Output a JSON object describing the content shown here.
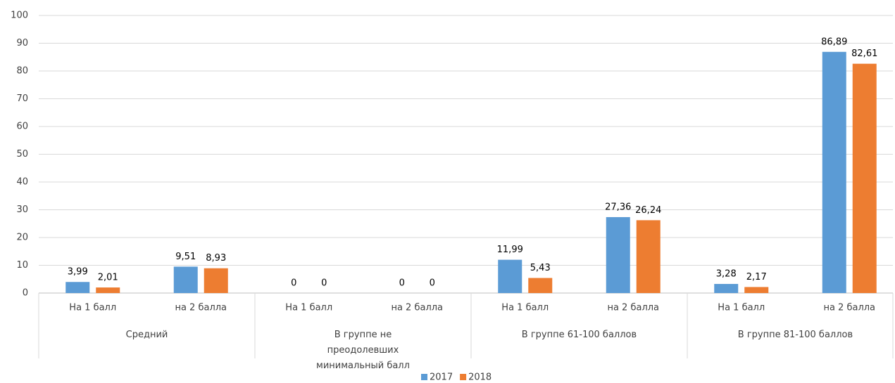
{
  "chart_data": {
    "type": "bar",
    "categories": [
      "На 1 балл",
      "на 2 балла",
      "На 1 балл",
      "на 2 балла",
      "На 1 балл",
      "на 2 балла",
      "На 1 балл",
      "на 2 балла"
    ],
    "groups": [
      "Средний",
      "В группе не преодолевших минимальный балл",
      "В группе 61-100 баллов",
      "В группе 81-100 баллов"
    ],
    "series": [
      {
        "name": "2017",
        "color": "#5b9bd5",
        "values": [
          3.99,
          9.51,
          0,
          0,
          11.99,
          27.36,
          3.28,
          86.89
        ],
        "value_labels": [
          "3,99",
          "9,51",
          "0",
          "0",
          "11,99",
          "27,36",
          "3,28",
          "86,89"
        ]
      },
      {
        "name": "2018",
        "color": "#ed7d31",
        "values": [
          2.01,
          8.93,
          0,
          0,
          5.43,
          26.24,
          2.17,
          82.61
        ],
        "value_labels": [
          "2,01",
          "8,93",
          "0",
          "0",
          "5,43",
          "26,24",
          "2,17",
          "82,61"
        ]
      }
    ],
    "ylim": [
      0,
      100
    ],
    "yticks": [
      0,
      10,
      20,
      30,
      40,
      50,
      60,
      70,
      80,
      90,
      100
    ],
    "grid": true,
    "legend": "bottom"
  }
}
